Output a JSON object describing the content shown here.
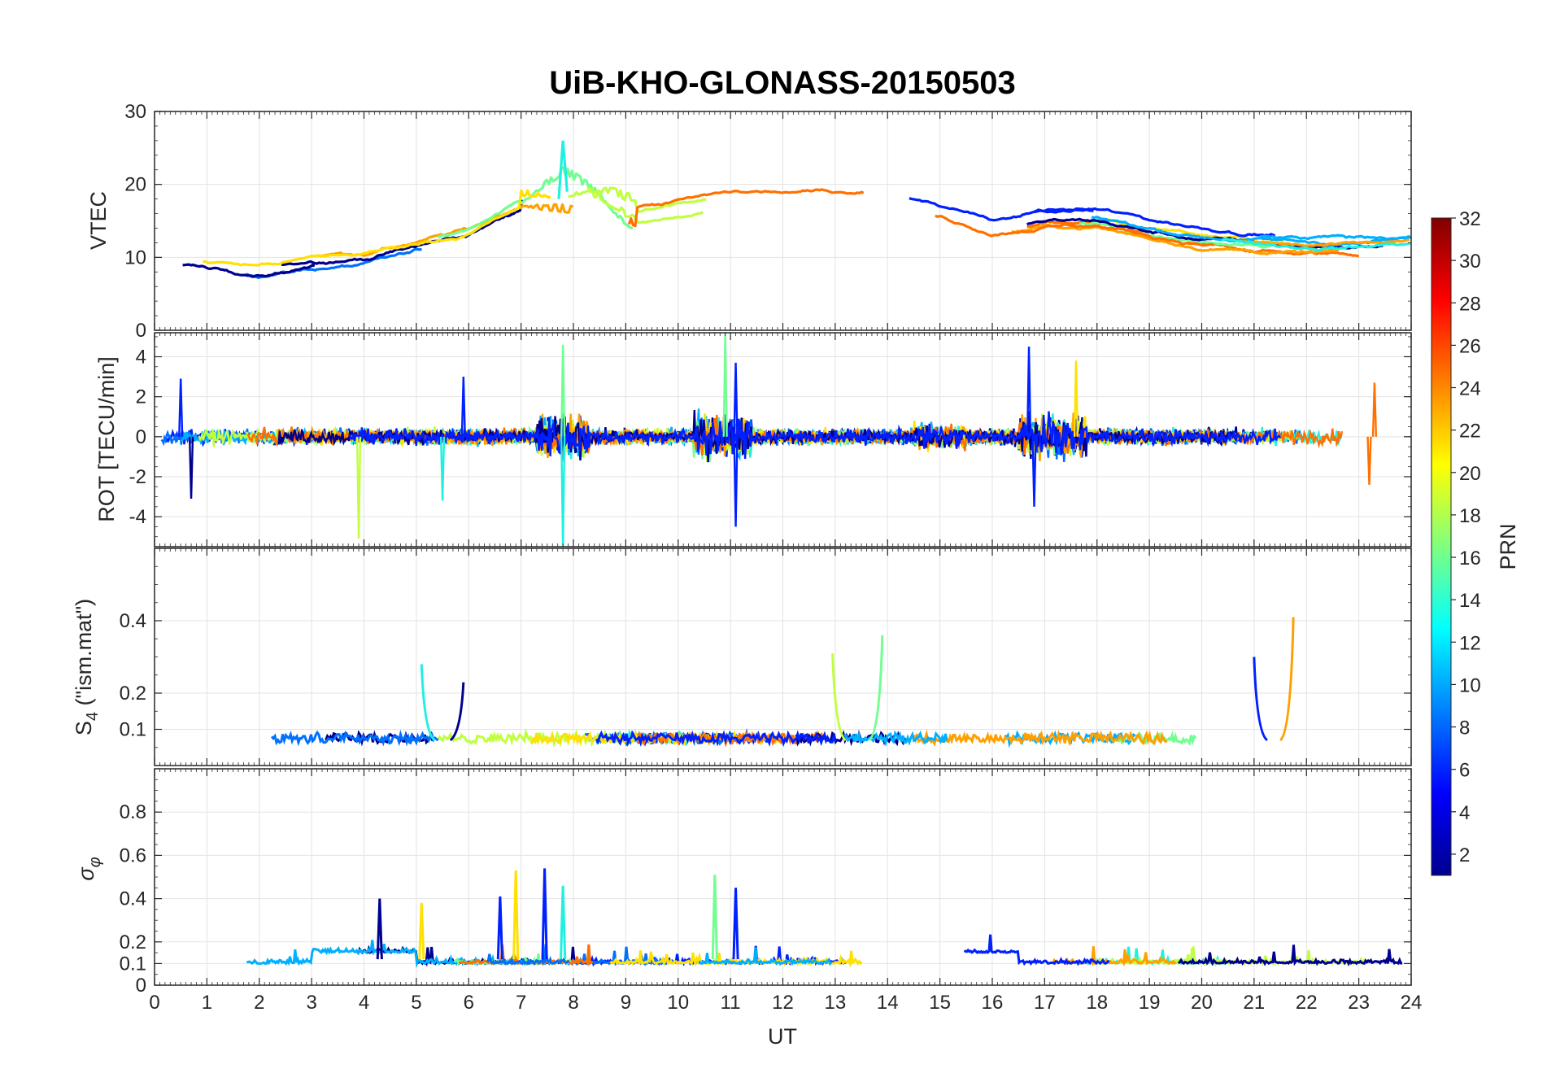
{
  "chart_data": [
    {
      "type": "line",
      "title": "UiB-KHO-GLONASS-20150503",
      "panel": "vtec",
      "ylabel": "VTEC",
      "xlim": [
        0,
        24
      ],
      "ylim": [
        0,
        30
      ],
      "yticks": [
        0,
        10,
        20,
        30
      ],
      "grid": true,
      "series_hint": "Per-PRN VTEC tracks: ~10 at 0-4 UT, rising to ~15-22 between 7-9 UT (peak ~26 near 7.8 UT), ~15-20 between 10-17 UT, decreasing to ~10-13 after 19 UT"
    },
    {
      "type": "line",
      "panel": "rot",
      "ylabel": "ROT [TECU/min]",
      "xlim": [
        0,
        24
      ],
      "ylim": [
        -5.5,
        5.2
      ],
      "yticks": [
        -4,
        -2,
        0,
        2,
        4
      ],
      "grid": true,
      "series_hint": "Rate of TEC fluctuating around 0 (±1), spikes up to ~5 near 7.8 and 10.9 UT, down to ~-5 near 3.9, 7.8 and 11.1 UT"
    },
    {
      "type": "line",
      "panel": "s4",
      "ylabel": "S4 (\"ism.mat\")",
      "xlim": [
        0,
        24
      ],
      "ylim": [
        0,
        0.6
      ],
      "yticks": [
        0.1,
        0.2,
        0.4
      ],
      "ytick_labels": [
        "0.1",
        "0.2",
        "0.4"
      ],
      "grid": true,
      "spikes": [
        {
          "x": 5.1,
          "y": 0.28
        },
        {
          "x": 5.9,
          "y": 0.23
        },
        {
          "x": 12.95,
          "y": 0.31
        },
        {
          "x": 13.9,
          "y": 0.36
        },
        {
          "x": 21.0,
          "y": 0.3
        },
        {
          "x": 21.75,
          "y": 0.41
        }
      ],
      "series_hint": "Amplitude scintillation index baseline ~0.05-0.1 with isolated spikes"
    },
    {
      "type": "line",
      "panel": "sigma_phi",
      "ylabel": "σφ",
      "xlabel": "UT",
      "xlim": [
        0,
        24
      ],
      "ylim": [
        0,
        1
      ],
      "yticks": [
        0,
        0.1,
        0.2,
        0.4,
        0.6,
        0.8
      ],
      "ytick_labels": [
        "0",
        "0.1",
        "0.2",
        "0.4",
        "0.6",
        "0.8"
      ],
      "xticks": [
        0,
        1,
        2,
        3,
        4,
        5,
        6,
        7,
        8,
        9,
        10,
        11,
        12,
        13,
        14,
        15,
        16,
        17,
        18,
        19,
        20,
        21,
        22,
        23,
        24
      ],
      "grid": true,
      "spikes": [
        {
          "x": 4.3,
          "y": 0.4
        },
        {
          "x": 5.1,
          "y": 0.38
        },
        {
          "x": 6.6,
          "y": 0.41
        },
        {
          "x": 6.9,
          "y": 0.53
        },
        {
          "x": 7.45,
          "y": 0.54
        },
        {
          "x": 7.8,
          "y": 0.46
        },
        {
          "x": 10.7,
          "y": 0.51
        },
        {
          "x": 11.1,
          "y": 0.45
        }
      ],
      "series_hint": "Phase scintillation index baseline ~0.1-0.2 with spikes"
    }
  ],
  "colorbar": {
    "label": "PRN",
    "range": [
      1,
      32
    ],
    "tick_values": [
      2,
      4,
      6,
      8,
      10,
      12,
      14,
      16,
      18,
      20,
      22,
      24,
      26,
      28,
      30,
      32
    ],
    "tick_labels": [
      "2",
      "4",
      "6",
      "8",
      "10",
      "12",
      "14",
      "16",
      "18",
      "20",
      "22",
      "24",
      "26",
      "28",
      "30",
      "32"
    ],
    "colormap": "jet"
  },
  "panel_labels": {
    "title": "UiB-KHO-GLONASS-20150503",
    "vtec": "VTEC",
    "rot": "ROT [TECU/min]",
    "s4_main": "S",
    "s4_sub": "4",
    "s4_rest": " (\"ism.mat\")",
    "sigma_main": "σ",
    "sigma_sub": "φ",
    "xlabel": "UT",
    "colorbar": "PRN"
  },
  "line_colors": [
    "#00008f",
    "#0020ff",
    "#0070ff",
    "#00b0ff",
    "#20f0e0",
    "#70ff90",
    "#c0ff40",
    "#ffe000",
    "#ffa000",
    "#ff7000"
  ]
}
